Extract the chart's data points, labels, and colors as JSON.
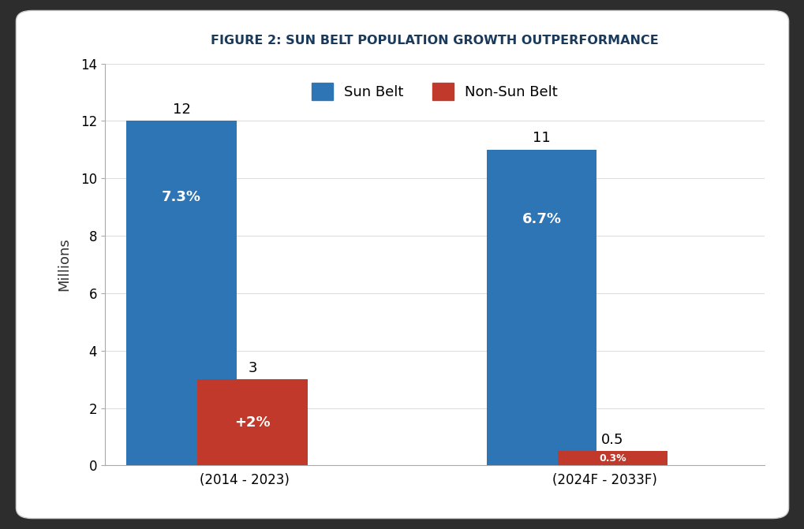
{
  "title": "FIGURE 2: SUN BELT POPULATION GROWTH OUTPERFORMANCE",
  "title_fontsize": 11.5,
  "title_color": "#1a3a5c",
  "ylabel": "Millions",
  "ylabel_fontsize": 13,
  "groups": [
    "(2014 - 2023)",
    "(2024F - 2033F)"
  ],
  "sunbelt_values": [
    12,
    11
  ],
  "nonsunbelt_values": [
    3,
    0.5
  ],
  "sunbelt_labels": [
    "7.3%",
    "6.7%"
  ],
  "nonsunbelt_labels": [
    "+2%",
    "0.3%"
  ],
  "sunbelt_top_labels": [
    "12",
    "11"
  ],
  "nonsunbelt_top_labels": [
    "3",
    "0.5"
  ],
  "sunbelt_color": "#2e75b6",
  "nonsunbelt_color": "#c0392b",
  "bar_width": 0.55,
  "group_centers": [
    1.0,
    2.8
  ],
  "bar_gap": 0.08,
  "ylim": [
    0,
    14
  ],
  "yticks": [
    0,
    2,
    4,
    6,
    8,
    10,
    12,
    14
  ],
  "legend_sunbelt": "Sun Belt",
  "legend_nonsunbelt": "Non-Sun Belt",
  "plot_bg": "#ffffff",
  "fig_bg": "#ffffff",
  "outer_bg": "#2d2d2d",
  "xlim": [
    0.3,
    3.6
  ]
}
